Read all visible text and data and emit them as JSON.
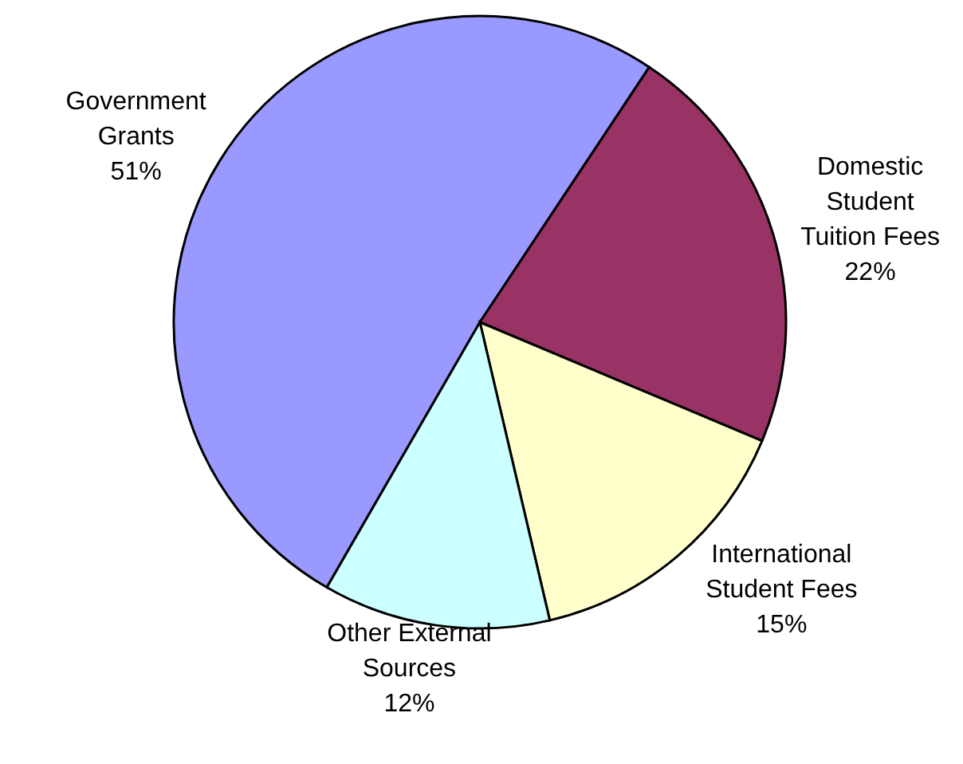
{
  "chart_data": {
    "type": "pie",
    "categories": [
      "Government Grants",
      "Domestic Student Tuition Fees",
      "International Student Fees",
      "Other External Sources"
    ],
    "values": [
      51,
      22,
      15,
      12
    ],
    "value_labels": [
      "51%",
      "22%",
      "15%",
      "12%"
    ],
    "colors": [
      "#9999ff",
      "#993366",
      "#ffffcc",
      "#ccffff"
    ]
  }
}
